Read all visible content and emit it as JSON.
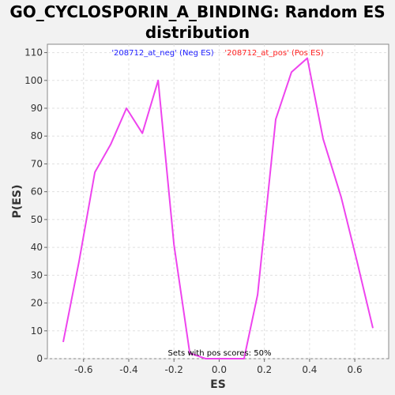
{
  "chart_data": {
    "type": "line",
    "title_line1": "GO_CYCLOSPORIN_A_BINDING: Random ES",
    "title_line2": "distribution",
    "xlabel": "ES",
    "ylabel": "P(ES)",
    "xlim": [
      -0.76,
      0.75
    ],
    "ylim": [
      0,
      113
    ],
    "x_ticks": [
      -0.6,
      -0.4,
      -0.2,
      0.0,
      0.2,
      0.4,
      0.6
    ],
    "x_tick_labels": [
      "-0.6",
      "-0.4",
      "-0.2",
      "0.0",
      "0.2",
      "0.4",
      "0.6"
    ],
    "y_ticks": [
      0,
      10,
      20,
      30,
      40,
      50,
      60,
      70,
      80,
      90,
      100,
      110
    ],
    "y_tick_labels": [
      "0",
      "10",
      "20",
      "30",
      "40",
      "50",
      "60",
      "70",
      "80",
      "90",
      "100",
      "110"
    ],
    "grid": true,
    "legend": [
      {
        "label": "'208712_at_neg' (Neg ES)",
        "color": "#2020ff"
      },
      {
        "label": "'208712_at_pos' (Pos ES)",
        "color": "#ff2020"
      }
    ],
    "legend_placement": "top",
    "annotation": "Sets with pos scores: 50%",
    "series": [
      {
        "color": "#ee44ee",
        "x": [
          -0.69,
          -0.62,
          -0.55,
          -0.48,
          -0.41,
          -0.34,
          -0.27,
          -0.2,
          -0.13,
          -0.06,
          0.0,
          0.06,
          0.11,
          0.17,
          0.25,
          0.32,
          0.39,
          0.46,
          0.54,
          0.61,
          0.68
        ],
        "y": [
          6,
          35,
          67,
          77,
          90,
          81,
          100,
          41,
          2,
          0,
          0,
          0,
          0,
          23,
          86,
          103,
          108,
          79,
          58,
          35,
          11
        ]
      }
    ]
  }
}
